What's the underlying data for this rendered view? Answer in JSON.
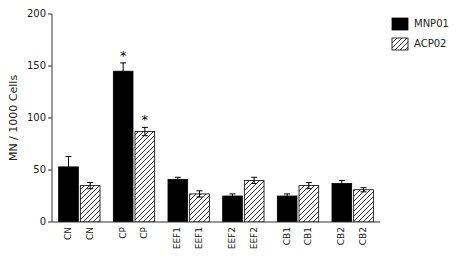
{
  "chart_data": {
    "type": "bar",
    "categories": [
      "CN",
      "CP",
      "EEF1",
      "EEF2",
      "CB1",
      "CB2"
    ],
    "series": [
      {
        "name": "MNP01",
        "color": "#000000",
        "values": [
          53,
          145,
          41,
          25,
          25,
          37
        ],
        "errors": [
          10,
          8,
          2,
          2,
          2,
          3
        ]
      },
      {
        "name": "ACP02",
        "color": "#ffffff",
        "values": [
          35,
          87,
          27,
          40,
          35,
          31
        ],
        "errors": [
          3,
          4,
          3,
          3,
          3,
          2
        ]
      }
    ],
    "ylabel": "MN / 1000 Cells",
    "ylim": [
      0,
      200
    ],
    "yticks": [
      0,
      50,
      100,
      150,
      200
    ],
    "grid": false,
    "legend": "upper right",
    "annotations": [
      {
        "text": "*",
        "category": "CP",
        "series": "MNP01"
      },
      {
        "text": "*",
        "category": "CP",
        "series": "ACP02"
      }
    ]
  }
}
